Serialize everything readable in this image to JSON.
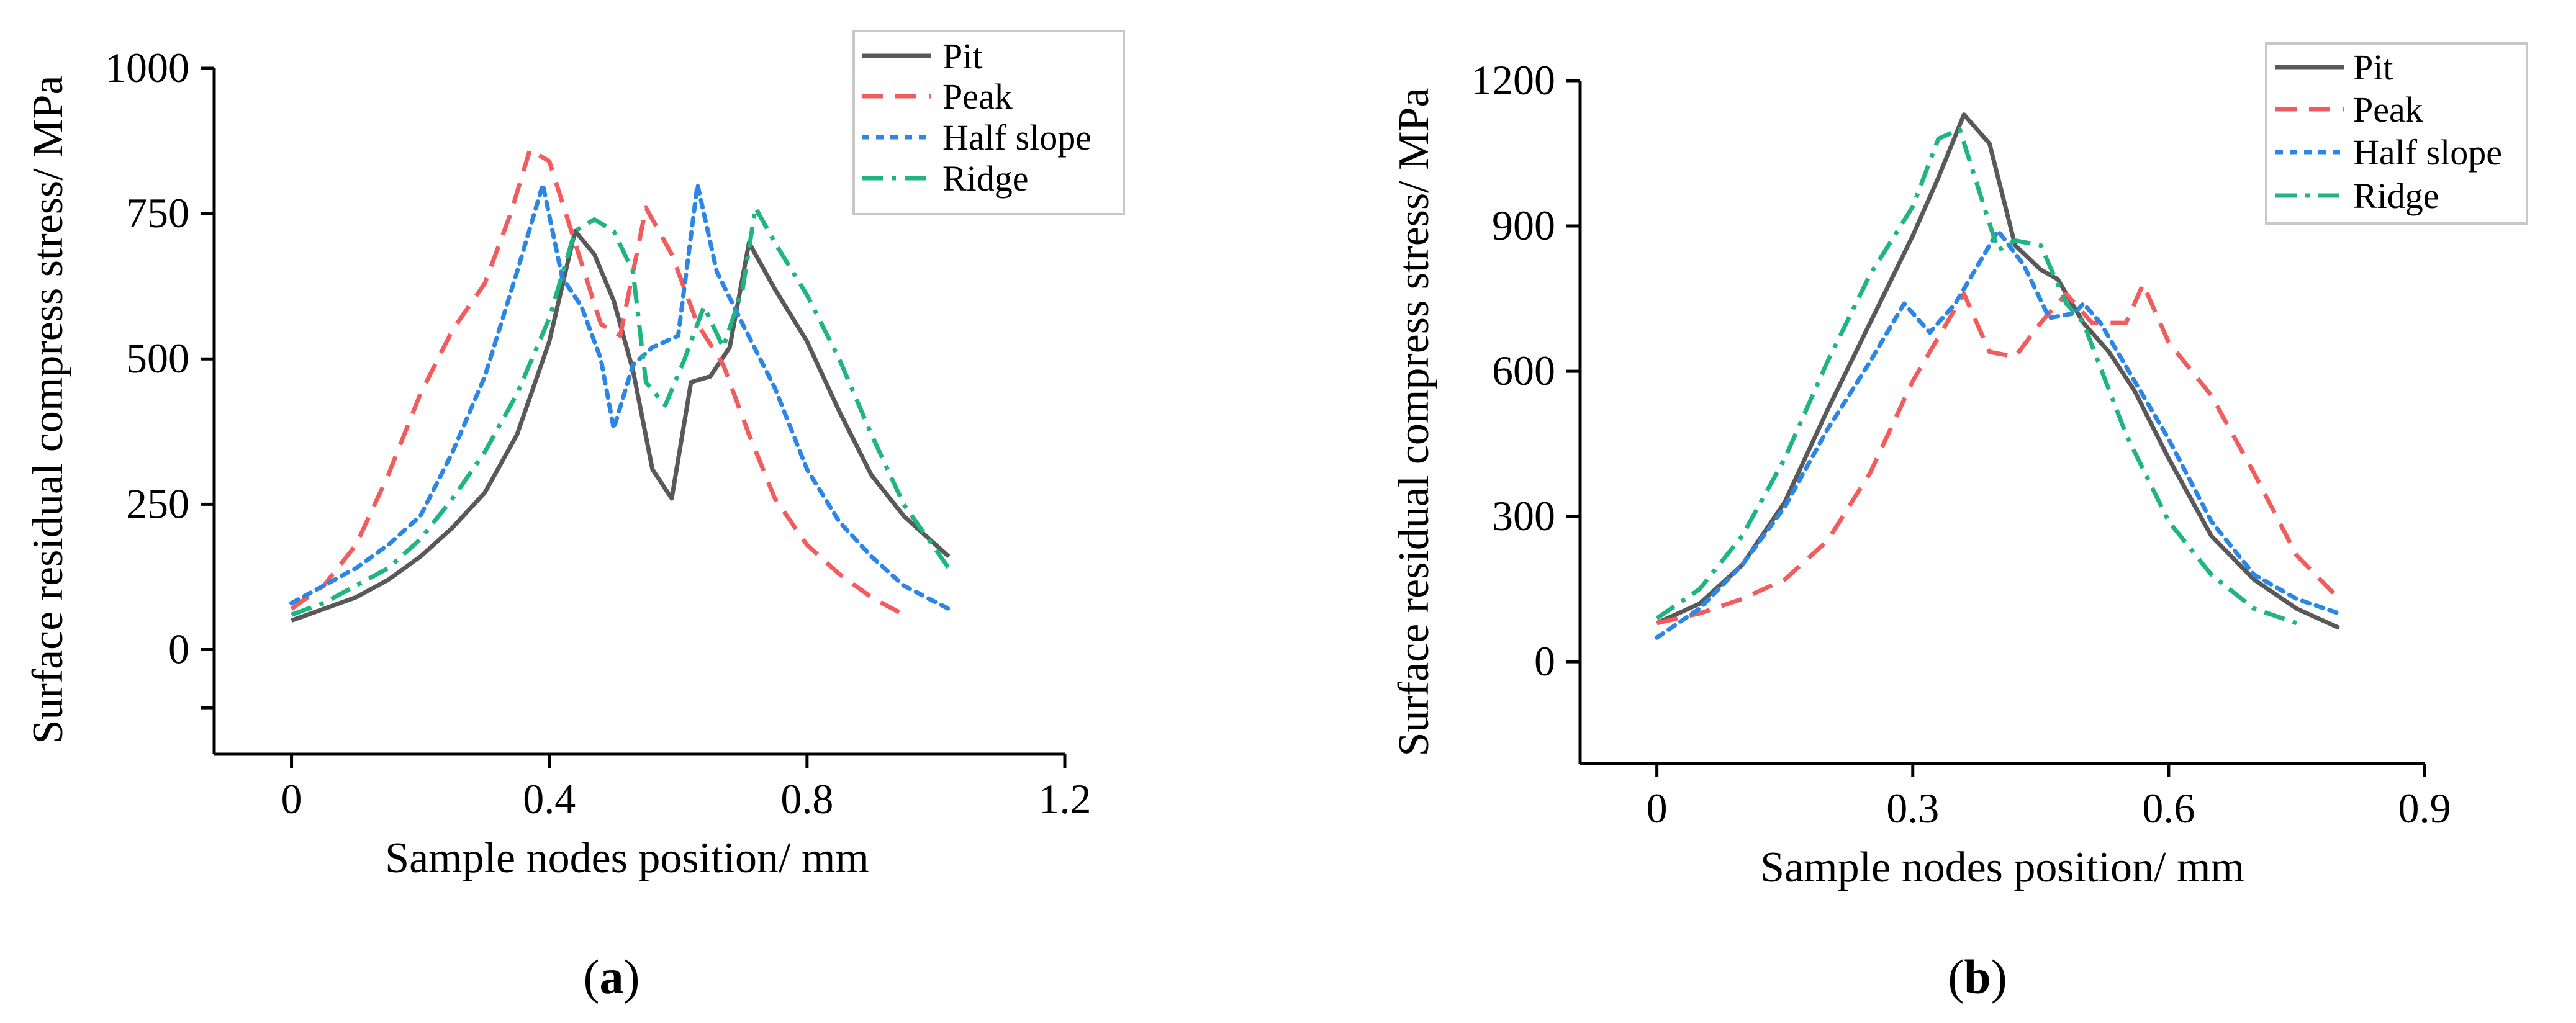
{
  "chart_data": [
    {
      "id": "a",
      "type": "line",
      "caption": "(a)",
      "xlabel": "Sample nodes position/ mm",
      "ylabel": "Surface residual compress stress/ MPa",
      "xlim": [
        -0.12,
        1.2
      ],
      "ylim": [
        -180,
        1000
      ],
      "xticks": [
        0,
        0.4,
        0.8,
        1.2
      ],
      "xtick_labels": [
        "0",
        "0.4",
        "0.8",
        "1.2"
      ],
      "yticks": [
        -100,
        0,
        250,
        500,
        750,
        1000
      ],
      "ytick_labels": [
        "",
        "0",
        "250",
        "500",
        "750",
        "1000"
      ],
      "series": [
        {
          "name": "Pit",
          "color": "#595959",
          "dash": "solid",
          "x": [
            0,
            0.05,
            0.1,
            0.15,
            0.2,
            0.25,
            0.3,
            0.35,
            0.4,
            0.44,
            0.47,
            0.5,
            0.53,
            0.56,
            0.59,
            0.62,
            0.65,
            0.68,
            0.71,
            0.75,
            0.8,
            0.85,
            0.9,
            0.95,
            1.02
          ],
          "values": [
            50,
            70,
            90,
            120,
            160,
            210,
            270,
            370,
            530,
            720,
            680,
            600,
            480,
            310,
            260,
            460,
            470,
            520,
            700,
            620,
            530,
            410,
            300,
            230,
            160
          ]
        },
        {
          "name": "Peak",
          "color": "#f25c5c",
          "dash": "long-dash",
          "x": [
            0,
            0.05,
            0.1,
            0.15,
            0.2,
            0.25,
            0.3,
            0.34,
            0.37,
            0.4,
            0.44,
            0.48,
            0.51,
            0.55,
            0.59,
            0.63,
            0.67,
            0.71,
            0.75,
            0.8,
            0.85,
            0.9,
            0.95
          ],
          "values": [
            70,
            110,
            180,
            300,
            440,
            550,
            630,
            750,
            860,
            840,
            700,
            560,
            540,
            760,
            680,
            560,
            490,
            370,
            260,
            180,
            130,
            90,
            60
          ]
        },
        {
          "name": "Half slope",
          "color": "#2b86e6",
          "dash": "dotted",
          "x": [
            0,
            0.05,
            0.1,
            0.15,
            0.2,
            0.25,
            0.3,
            0.35,
            0.39,
            0.42,
            0.45,
            0.48,
            0.5,
            0.53,
            0.56,
            0.6,
            0.63,
            0.66,
            0.7,
            0.75,
            0.8,
            0.85,
            0.9,
            0.95,
            1.02
          ],
          "values": [
            80,
            110,
            140,
            180,
            230,
            340,
            470,
            650,
            800,
            640,
            590,
            500,
            380,
            490,
            520,
            540,
            800,
            650,
            560,
            450,
            310,
            220,
            160,
            110,
            70
          ]
        },
        {
          "name": "Ridge",
          "color": "#1fb580",
          "dash": "dash-dot",
          "x": [
            0,
            0.05,
            0.1,
            0.15,
            0.2,
            0.25,
            0.3,
            0.35,
            0.4,
            0.44,
            0.47,
            0.5,
            0.53,
            0.55,
            0.58,
            0.61,
            0.64,
            0.67,
            0.7,
            0.72,
            0.75,
            0.8,
            0.85,
            0.9,
            0.95,
            1.02
          ],
          "values": [
            60,
            80,
            110,
            140,
            190,
            260,
            340,
            440,
            570,
            720,
            740,
            720,
            650,
            460,
            420,
            500,
            590,
            520,
            620,
            760,
            700,
            610,
            500,
            370,
            250,
            140
          ]
        }
      ]
    },
    {
      "id": "b",
      "type": "line",
      "caption": "(b)",
      "xlabel": "Sample nodes position/ mm",
      "ylabel": "Surface residual compress  stress/ MPa",
      "xlim": [
        -0.09,
        0.9
      ],
      "ylim": [
        -210,
        1200
      ],
      "xticks": [
        0,
        0.3,
        0.6,
        0.9
      ],
      "xtick_labels": [
        "0",
        "0.3",
        "0.6",
        "0.9"
      ],
      "yticks": [
        0,
        300,
        600,
        900,
        1200
      ],
      "ytick_labels": [
        "0",
        "300",
        "600",
        "900",
        "1200"
      ],
      "series": [
        {
          "name": "Pit",
          "color": "#595959",
          "dash": "solid",
          "x": [
            0,
            0.05,
            0.1,
            0.15,
            0.2,
            0.25,
            0.3,
            0.33,
            0.36,
            0.39,
            0.42,
            0.45,
            0.47,
            0.5,
            0.53,
            0.56,
            0.6,
            0.65,
            0.7,
            0.75,
            0.8
          ],
          "values": [
            80,
            120,
            200,
            330,
            520,
            700,
            880,
            1000,
            1130,
            1070,
            860,
            810,
            790,
            700,
            640,
            560,
            420,
            260,
            170,
            110,
            70
          ]
        },
        {
          "name": "Peak",
          "color": "#f25c5c",
          "dash": "long-dash",
          "x": [
            0,
            0.05,
            0.1,
            0.15,
            0.2,
            0.25,
            0.3,
            0.34,
            0.36,
            0.39,
            0.42,
            0.45,
            0.48,
            0.51,
            0.55,
            0.57,
            0.6,
            0.65,
            0.7,
            0.75,
            0.8
          ],
          "values": [
            80,
            100,
            130,
            170,
            250,
            390,
            580,
            700,
            760,
            640,
            630,
            700,
            760,
            700,
            700,
            780,
            660,
            550,
            390,
            220,
            130
          ]
        },
        {
          "name": "Half slope",
          "color": "#2b86e6",
          "dash": "dotted",
          "x": [
            0,
            0.05,
            0.1,
            0.15,
            0.2,
            0.25,
            0.29,
            0.32,
            0.35,
            0.38,
            0.4,
            0.43,
            0.46,
            0.49,
            0.5,
            0.52,
            0.55,
            0.6,
            0.65,
            0.7,
            0.75,
            0.8
          ],
          "values": [
            50,
            110,
            200,
            320,
            480,
            620,
            740,
            680,
            740,
            830,
            890,
            820,
            710,
            720,
            740,
            700,
            610,
            460,
            290,
            180,
            130,
            100
          ]
        },
        {
          "name": "Ridge",
          "color": "#1fb580",
          "dash": "dash-dot",
          "x": [
            0,
            0.05,
            0.1,
            0.15,
            0.2,
            0.25,
            0.3,
            0.33,
            0.355,
            0.38,
            0.4,
            0.42,
            0.45,
            0.48,
            0.5,
            0.55,
            0.6,
            0.65,
            0.7,
            0.75
          ],
          "values": [
            90,
            150,
            260,
            420,
            620,
            800,
            940,
            1080,
            1100,
            960,
            850,
            870,
            860,
            740,
            700,
            470,
            290,
            180,
            110,
            80
          ]
        }
      ]
    }
  ]
}
